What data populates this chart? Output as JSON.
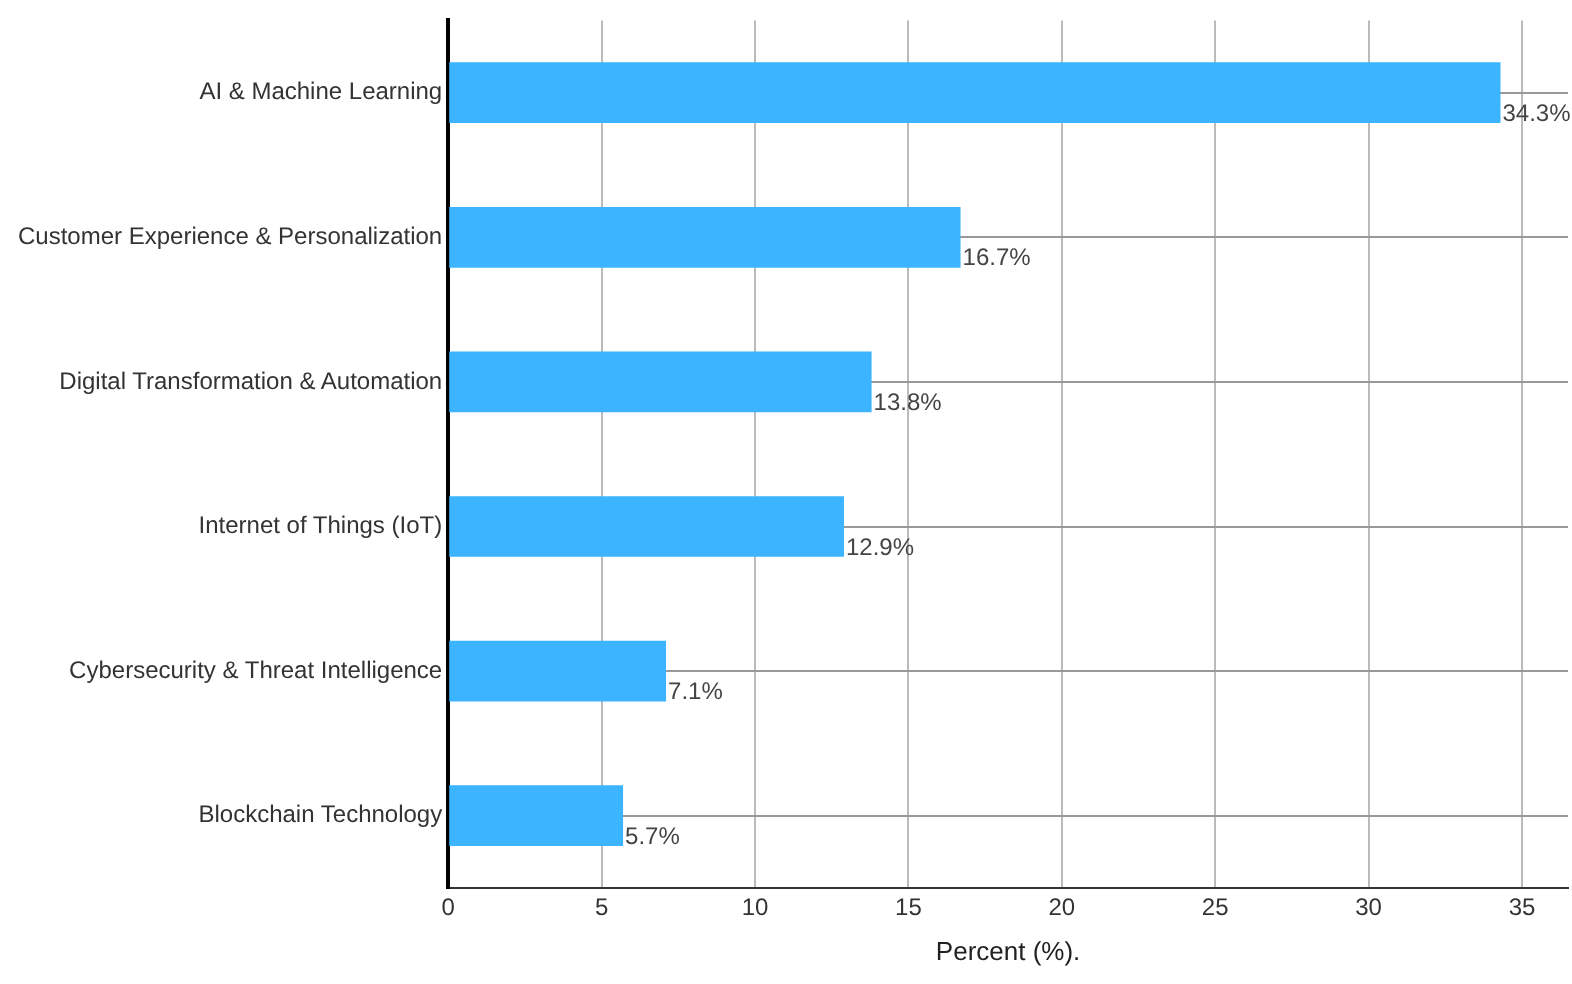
{
  "chart_data": {
    "type": "bar",
    "orientation": "horizontal",
    "xlabel": "Percent (%).",
    "categories": [
      "AI & Machine Learning",
      "Customer Experience & Personalization",
      "Digital Transformation & Automation",
      "Internet of Things (IoT)",
      "Cybersecurity & Threat Intelligence",
      "Blockchain Technology"
    ],
    "values": [
      34.3,
      16.7,
      13.8,
      12.9,
      7.1,
      5.7
    ],
    "color": "#3db4ff",
    "xlim": [
      0,
      36.5
    ],
    "xticks": [
      0,
      5,
      10,
      15,
      20,
      25,
      30,
      35
    ],
    "value_labels": [
      "34.3%",
      "16.7%",
      "13.8%",
      "12.9%",
      "7.1%",
      "5.7%"
    ],
    "grid": true,
    "legend": false
  }
}
